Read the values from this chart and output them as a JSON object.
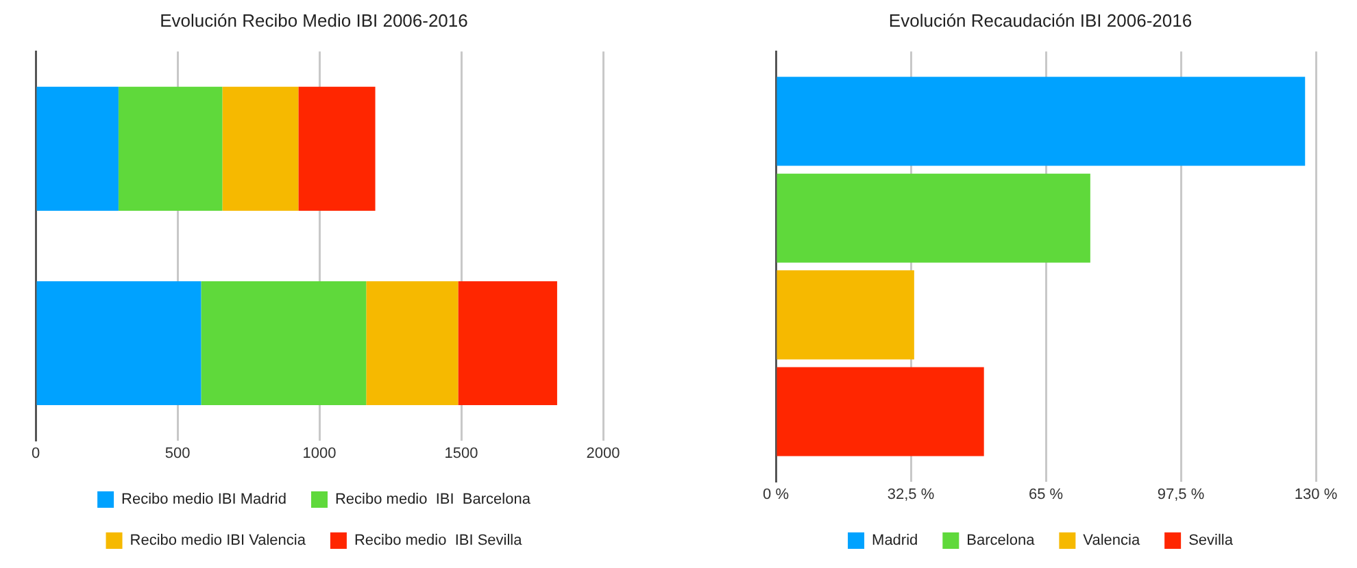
{
  "chart_data": [
    {
      "type": "bar",
      "title": "Evolución Recibo Medio IBI 2006-2016",
      "orientation": "horizontal",
      "stacked": true,
      "categories": [
        null,
        null
      ],
      "series": [
        {
          "name": "Recibo medio IBI Madrid",
          "color": "#00a2ff",
          "values": [
            292,
            583
          ]
        },
        {
          "name": "Recibo medio  IBI  Barcelona",
          "color": "#5fd93b",
          "values": [
            366,
            582
          ]
        },
        {
          "name": "Recibo medio IBI Valencia",
          "color": "#f6b900",
          "values": [
            268,
            324
          ]
        },
        {
          "name": "Recibo medio  IBI Sevilla",
          "color": "#ff2600",
          "values": [
            271,
            349
          ]
        }
      ],
      "xlim": [
        0,
        2000
      ],
      "xticks": [
        0,
        500,
        1000,
        1500,
        2000
      ],
      "grid": "x",
      "legend": "bottom",
      "tick_labels": "x"
    },
    {
      "type": "bar",
      "title": "Evolución Recaudación IBI 2006-2016",
      "orientation": "horizontal",
      "categories": [
        null
      ],
      "series": [
        {
          "name": "Madrid",
          "color": "#00a2ff",
          "values": [
            127.4
          ]
        },
        {
          "name": "Barcelona",
          "color": "#5fd93b",
          "values": [
            75.7
          ]
        },
        {
          "name": "Valencia",
          "color": "#f6b900",
          "values": [
            33.3
          ]
        },
        {
          "name": "Sevilla",
          "color": "#ff2600",
          "values": [
            50.1
          ]
        }
      ],
      "xlim": [
        0,
        130
      ],
      "xticks": [
        {
          "value": 0,
          "label": "0 %"
        },
        {
          "value": 32.5,
          "label": "32,5 %"
        },
        {
          "value": 65,
          "label": "65 %"
        },
        {
          "value": 97.5,
          "label": "97,5 %"
        },
        {
          "value": 130,
          "label": "130 %"
        }
      ],
      "grid": "x",
      "legend": "bottom",
      "tick_labels": "x"
    }
  ]
}
